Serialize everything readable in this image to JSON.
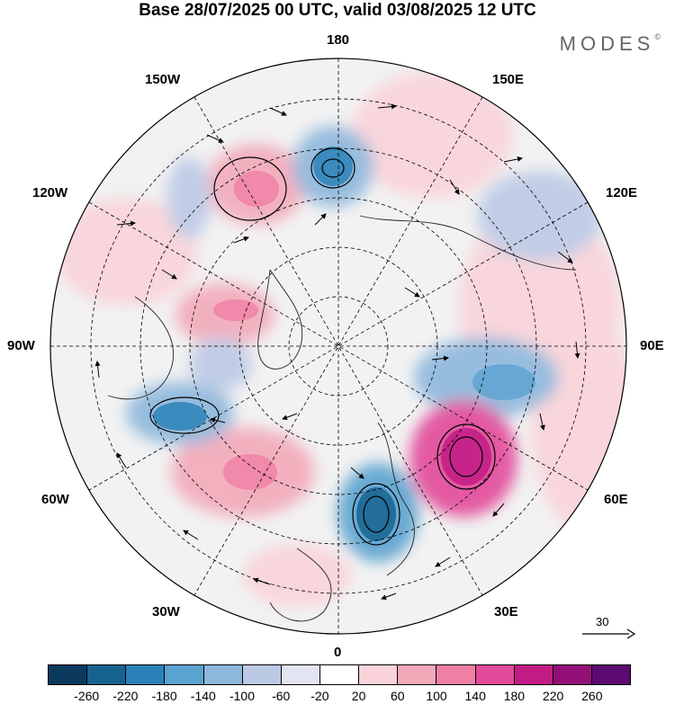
{
  "title": "Base 28/07/2025 00 UTC, valid 03/08/2025 12 UTC",
  "logo": "MODES",
  "logo_mark": "©",
  "longitude_labels": {
    "top": "180",
    "bottom": "0",
    "left": "90W",
    "right": "90E",
    "w150": "150W",
    "e150": "150E",
    "w120": "120W",
    "e120": "120E",
    "w60": "60W",
    "e60": "60E",
    "w30": "30W",
    "e30": "30E"
  },
  "reference_vector": "30",
  "colorbar": {
    "colors": [
      "#0b3a5e",
      "#17638f",
      "#2b82b8",
      "#5aa2cf",
      "#8db7dc",
      "#bcc9e5",
      "#e3e4f1",
      "#ffffff",
      "#f9d3d9",
      "#f3a9b9",
      "#ef7fa5",
      "#e24a99",
      "#c21b86",
      "#941079",
      "#5c0b70"
    ],
    "ticks": [
      "-260",
      "-220",
      "-180",
      "-140",
      "-100",
      "-60",
      "-20",
      "20",
      "60",
      "100",
      "140",
      "180",
      "220",
      "260"
    ]
  }
}
